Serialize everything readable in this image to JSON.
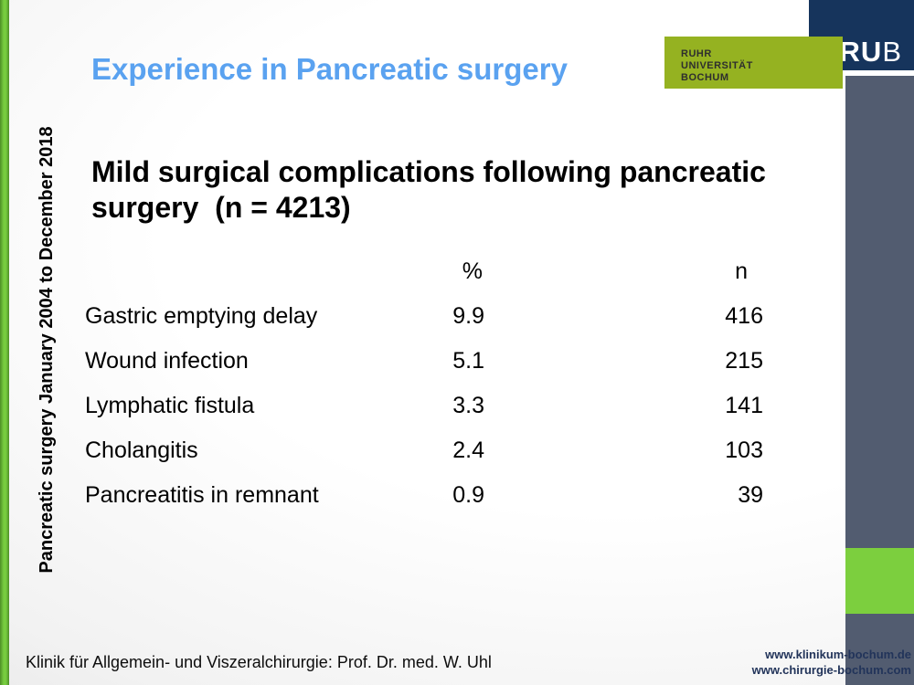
{
  "slide": {
    "title": "Experience in Pancreatic surgery",
    "heading": {
      "line1": "Mild surgical complications following pancreatic",
      "line2": "surgery  (n = 4213)"
    },
    "sidebar_text": "Pancreatic surgery January 2004 to December 2018",
    "footer": "Klinik für Allgemein- und Viszeralchirurgie: Prof. Dr. med. W. Uhl",
    "urls": {
      "0": "www.klinikum-bochum.de",
      "1": "www.chirurgie-bochum.com"
    }
  },
  "logo": {
    "university": {
      "0": "RUHR",
      "1": "UNIVERSITÄT",
      "2": "BOCHUM"
    },
    "abbr_bold": "RU",
    "abbr_light": "B"
  },
  "table": {
    "headers": {
      "percent": "%",
      "n": "n"
    },
    "rows": {
      "0": {
        "label": "Gastric emptying delay",
        "percent": "9.9",
        "n": "416"
      },
      "1": {
        "label": "Wound infection",
        "percent": "5.1",
        "n": "215"
      },
      "2": {
        "label": "Lymphatic fistula",
        "percent": "3.3",
        "n": "141"
      },
      "3": {
        "label": "Cholangitis",
        "percent": "2.4",
        "n": "103"
      },
      "4": {
        "label": "Pancreatitis in remnant",
        "percent": "0.9",
        "n": "39"
      }
    }
  },
  "colors": {
    "title_blue": "#5aa2f0",
    "rub_navy": "#16345c",
    "logo_green": "#95b221",
    "strip_gray": "#525c70",
    "accent_green": "#7ccf3e",
    "url_navy": "#22345a"
  }
}
